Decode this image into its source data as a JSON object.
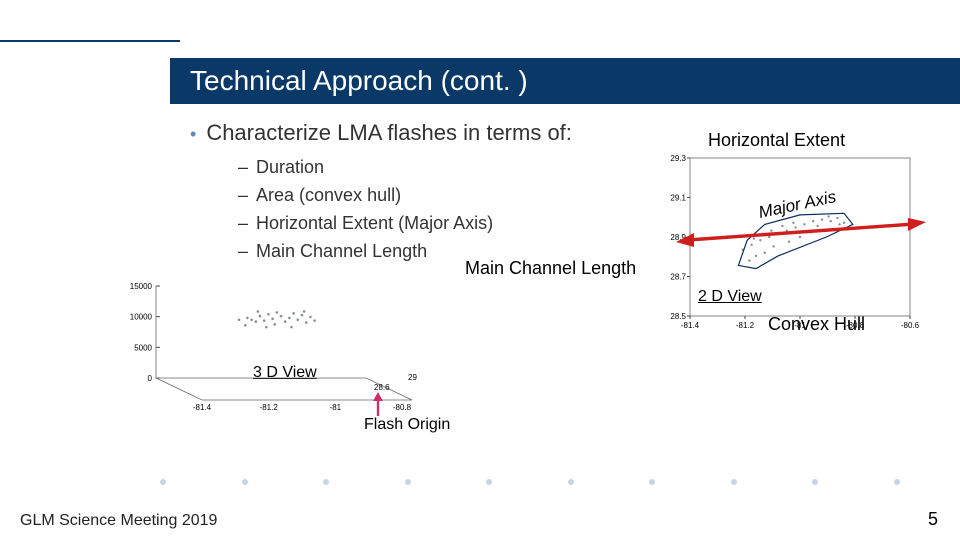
{
  "title": "Technical Approach (cont. )",
  "bullet": "Characterize LMA flashes in terms of:",
  "subitems": [
    "Duration",
    "Area (convex hull)",
    "Horizontal Extent (Major Axis)",
    "Main Channel Length"
  ],
  "labels": {
    "main_channel": "Main Channel Length",
    "three_d": "3 D View",
    "flash_origin": "Flash Origin",
    "horiz_extent": "Horizontal Extent",
    "major_axis": "Major Axis",
    "two_d": "2 D View",
    "convex_hull": "Convex Hull"
  },
  "footer": {
    "left": "GLM Science Meeting 2019",
    "page": "5"
  },
  "colors": {
    "title_bar": "#0a3968",
    "dots": "#c6d5e4",
    "axis": "#888888",
    "scatter": "#9aa0a6",
    "arrow": "#d01e1e",
    "arrow_pink": "#cc2f6a",
    "hull": "#0b2c5e"
  },
  "chart3d": {
    "type": "scatter3d-proj",
    "y_ticks": [
      0,
      5000,
      10000,
      15000
    ],
    "x_ticks": [
      -81.4,
      -81.2,
      -81,
      -80.8
    ],
    "z_ticks": [
      28.6,
      29
    ],
    "points": [
      [
        0.34,
        0.26
      ],
      [
        0.36,
        0.28
      ],
      [
        0.38,
        0.3
      ],
      [
        0.4,
        0.24
      ],
      [
        0.42,
        0.29
      ],
      [
        0.44,
        0.22
      ],
      [
        0.46,
        0.27
      ],
      [
        0.48,
        0.2
      ],
      [
        0.5,
        0.24
      ],
      [
        0.52,
        0.3
      ],
      [
        0.54,
        0.26
      ],
      [
        0.56,
        0.21
      ],
      [
        0.58,
        0.28
      ],
      [
        0.6,
        0.23
      ],
      [
        0.62,
        0.31
      ],
      [
        0.55,
        0.36
      ],
      [
        0.47,
        0.33
      ],
      [
        0.43,
        0.36
      ],
      [
        0.39,
        0.19
      ],
      [
        0.61,
        0.19
      ],
      [
        0.64,
        0.25
      ],
      [
        0.66,
        0.29
      ],
      [
        0.3,
        0.28
      ],
      [
        0.33,
        0.34
      ]
    ],
    "grid_color": "#dddddd",
    "point_color": "#8a8f94",
    "label_fontsize": 8
  },
  "chart2d": {
    "type": "scatter",
    "x_ticks": [
      -81.4,
      -81.2,
      -81,
      -80.8,
      -80.6
    ],
    "y_ticks": [
      28.5,
      28.7,
      28.9,
      29.1,
      29.3
    ],
    "points": [
      [
        0.24,
        0.58
      ],
      [
        0.28,
        0.55
      ],
      [
        0.32,
        0.52
      ],
      [
        0.36,
        0.5
      ],
      [
        0.4,
        0.48
      ],
      [
        0.44,
        0.46
      ],
      [
        0.48,
        0.44
      ],
      [
        0.52,
        0.42
      ],
      [
        0.56,
        0.4
      ],
      [
        0.6,
        0.39
      ],
      [
        0.64,
        0.4
      ],
      [
        0.68,
        0.42
      ],
      [
        0.55,
        0.47
      ],
      [
        0.5,
        0.5
      ],
      [
        0.45,
        0.53
      ],
      [
        0.38,
        0.56
      ],
      [
        0.34,
        0.6
      ],
      [
        0.3,
        0.62
      ],
      [
        0.27,
        0.65
      ],
      [
        0.63,
        0.37
      ],
      [
        0.67,
        0.38
      ],
      [
        0.7,
        0.41
      ],
      [
        0.58,
        0.43
      ],
      [
        0.47,
        0.41
      ],
      [
        0.42,
        0.43
      ],
      [
        0.37,
        0.46
      ],
      [
        0.33,
        0.48
      ],
      [
        0.29,
        0.51
      ]
    ],
    "hull": [
      [
        0.22,
        0.68
      ],
      [
        0.26,
        0.52
      ],
      [
        0.34,
        0.42
      ],
      [
        0.5,
        0.36
      ],
      [
        0.7,
        0.35
      ],
      [
        0.74,
        0.42
      ],
      [
        0.62,
        0.5
      ],
      [
        0.4,
        0.62
      ],
      [
        0.3,
        0.7
      ]
    ],
    "grid_color": "#e6e6e6",
    "point_color": "#8a8f94",
    "hull_color": "#0b2c5e",
    "label_fontsize": 8
  }
}
